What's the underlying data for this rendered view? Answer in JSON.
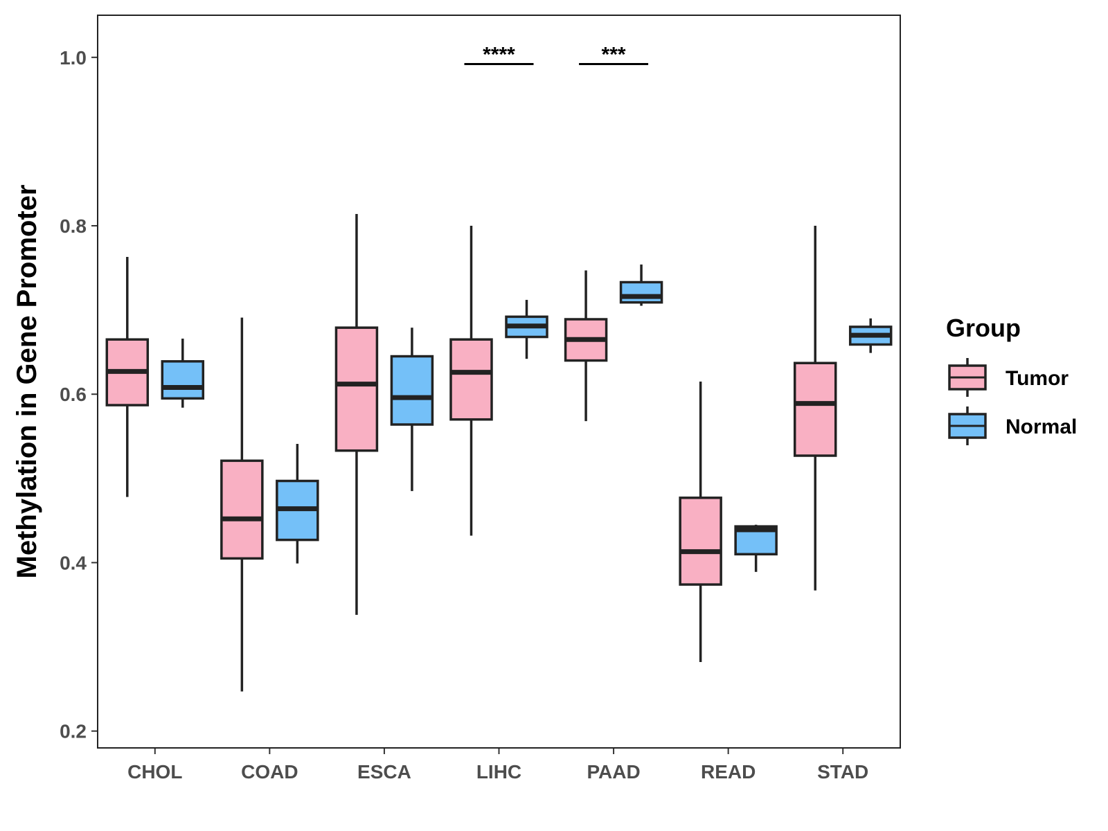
{
  "chart_data": {
    "type": "boxplot",
    "title": "",
    "xlabel": "",
    "ylabel": "Methylation in Gene Promoter",
    "ylim": [
      0.18,
      1.05
    ],
    "yticks": [
      "0.2",
      "0.4",
      "0.6",
      "0.8",
      "1.0"
    ],
    "ytick_values": [
      0.2,
      0.4,
      0.6,
      0.8,
      1.0
    ],
    "categories": [
      "CHOL",
      "COAD",
      "ESCA",
      "LIHC",
      "PAAD",
      "READ",
      "STAD"
    ],
    "legend": {
      "title": "Group",
      "position": "right",
      "entries": [
        {
          "name": "Tumor",
          "color": "#F9B0C3"
        },
        {
          "name": "Normal",
          "color": "#74C0F8"
        }
      ]
    },
    "series": [
      {
        "name": "Tumor",
        "color": "#F9B0C3",
        "boxes": [
          {
            "category": "CHOL",
            "min": 0.478,
            "q1": 0.587,
            "median": 0.627,
            "q3": 0.665,
            "max": 0.763
          },
          {
            "category": "COAD",
            "min": 0.247,
            "q1": 0.405,
            "median": 0.452,
            "q3": 0.521,
            "max": 0.691
          },
          {
            "category": "ESCA",
            "min": 0.338,
            "q1": 0.533,
            "median": 0.612,
            "q3": 0.679,
            "max": 0.814
          },
          {
            "category": "LIHC",
            "min": 0.432,
            "q1": 0.57,
            "median": 0.626,
            "q3": 0.665,
            "max": 0.8
          },
          {
            "category": "PAAD",
            "min": 0.568,
            "q1": 0.64,
            "median": 0.665,
            "q3": 0.689,
            "max": 0.747
          },
          {
            "category": "READ",
            "min": 0.282,
            "q1": 0.374,
            "median": 0.413,
            "q3": 0.477,
            "max": 0.615
          },
          {
            "category": "STAD",
            "min": 0.367,
            "q1": 0.527,
            "median": 0.589,
            "q3": 0.637,
            "max": 0.8
          }
        ]
      },
      {
        "name": "Normal",
        "color": "#74C0F8",
        "boxes": [
          {
            "category": "CHOL",
            "min": 0.584,
            "q1": 0.595,
            "median": 0.608,
            "q3": 0.639,
            "max": 0.666
          },
          {
            "category": "COAD",
            "min": 0.399,
            "q1": 0.427,
            "median": 0.464,
            "q3": 0.497,
            "max": 0.541
          },
          {
            "category": "ESCA",
            "min": 0.485,
            "q1": 0.564,
            "median": 0.596,
            "q3": 0.645,
            "max": 0.679
          },
          {
            "category": "LIHC",
            "min": 0.642,
            "q1": 0.668,
            "median": 0.681,
            "q3": 0.692,
            "max": 0.712
          },
          {
            "category": "PAAD",
            "min": 0.705,
            "q1": 0.709,
            "median": 0.716,
            "q3": 0.733,
            "max": 0.754
          },
          {
            "category": "READ",
            "min": 0.389,
            "q1": 0.41,
            "median": 0.439,
            "q3": 0.443,
            "max": 0.445
          },
          {
            "category": "STAD",
            "min": 0.649,
            "q1": 0.659,
            "median": 0.67,
            "q3": 0.68,
            "max": 0.69
          }
        ]
      }
    ],
    "annotations": [
      {
        "category": "LIHC",
        "label": "****",
        "y": 0.992
      },
      {
        "category": "PAAD",
        "label": "***",
        "y": 0.992
      }
    ]
  }
}
